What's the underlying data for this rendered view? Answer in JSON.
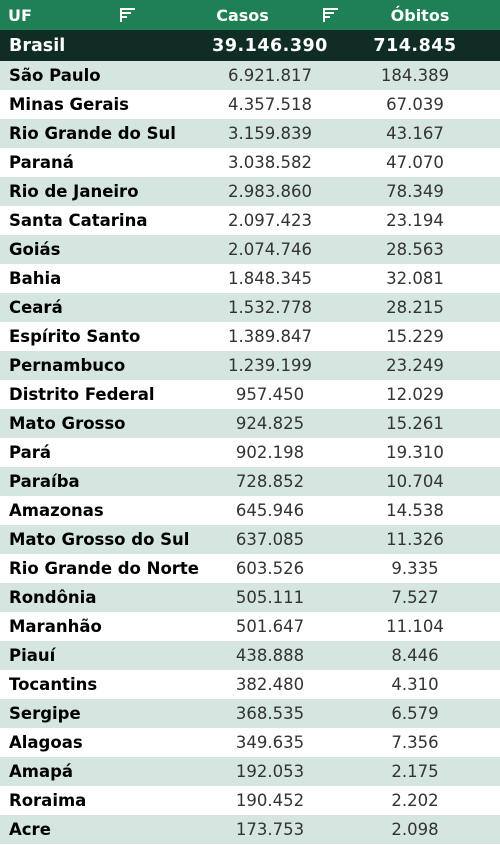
{
  "header": {
    "uf_label": "UF",
    "casos_label": "Casos",
    "obitos_label": "Óbitos",
    "filter_icon": "filter-icon",
    "background_color": "#1f7f55"
  },
  "total": {
    "name": "Brasil",
    "casos": "39.146.390",
    "obitos": "714.845"
  },
  "rows": [
    {
      "name": "São Paulo",
      "casos": "6.921.817",
      "obitos": "184.389"
    },
    {
      "name": "Minas Gerais",
      "casos": "4.357.518",
      "obitos": "67.039"
    },
    {
      "name": "Rio Grande do Sul",
      "casos": "3.159.839",
      "obitos": "43.167"
    },
    {
      "name": "Paraná",
      "casos": "3.038.582",
      "obitos": "47.070"
    },
    {
      "name": "Rio de Janeiro",
      "casos": "2.983.860",
      "obitos": "78.349"
    },
    {
      "name": "Santa Catarina",
      "casos": "2.097.423",
      "obitos": "23.194"
    },
    {
      "name": "Goiás",
      "casos": "2.074.746",
      "obitos": "28.563"
    },
    {
      "name": "Bahia",
      "casos": "1.848.345",
      "obitos": "32.081"
    },
    {
      "name": "Ceará",
      "casos": "1.532.778",
      "obitos": "28.215"
    },
    {
      "name": "Espírito Santo",
      "casos": "1.389.847",
      "obitos": "15.229"
    },
    {
      "name": "Pernambuco",
      "casos": "1.239.199",
      "obitos": "23.249"
    },
    {
      "name": "Distrito Federal",
      "casos": "957.450",
      "obitos": "12.029"
    },
    {
      "name": "Mato Grosso",
      "casos": "924.825",
      "obitos": "15.261"
    },
    {
      "name": "Pará",
      "casos": "902.198",
      "obitos": "19.310"
    },
    {
      "name": "Paraíba",
      "casos": "728.852",
      "obitos": "10.704"
    },
    {
      "name": "Amazonas",
      "casos": "645.946",
      "obitos": "14.538"
    },
    {
      "name": "Mato Grosso do Sul",
      "casos": "637.085",
      "obitos": "11.326"
    },
    {
      "name": "Rio Grande do Norte",
      "casos": "603.526",
      "obitos": "9.335"
    },
    {
      "name": "Rondônia",
      "casos": "505.111",
      "obitos": "7.527"
    },
    {
      "name": "Maranhão",
      "casos": "501.647",
      "obitos": "11.104"
    },
    {
      "name": "Piauí",
      "casos": "438.888",
      "obitos": "8.446"
    },
    {
      "name": "Tocantins",
      "casos": "382.480",
      "obitos": "4.310"
    },
    {
      "name": "Sergipe",
      "casos": "368.535",
      "obitos": "6.579"
    },
    {
      "name": "Alagoas",
      "casos": "349.635",
      "obitos": "7.356"
    },
    {
      "name": "Amapá",
      "casos": "192.053",
      "obitos": "2.175"
    },
    {
      "name": "Roraima",
      "casos": "190.452",
      "obitos": "2.202"
    },
    {
      "name": "Acre",
      "casos": "173.753",
      "obitos": "2.098"
    }
  ]
}
